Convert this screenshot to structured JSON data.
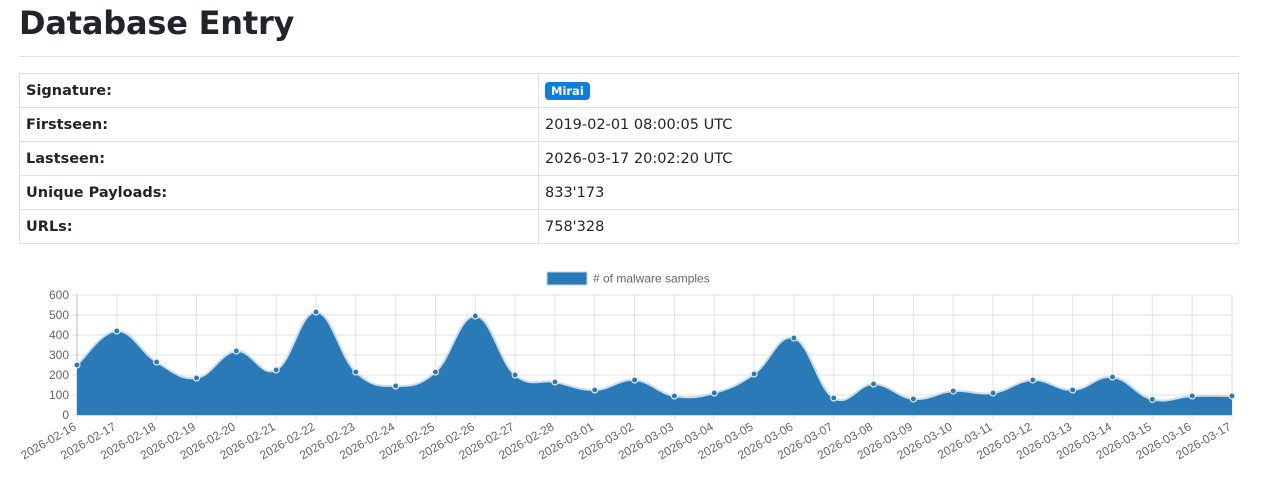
{
  "page": {
    "title": "Database Entry"
  },
  "info_rows": [
    {
      "label": "Signature:",
      "value": "Mirai",
      "badge": true
    },
    {
      "label": "Firstseen:",
      "value": "2019-02-01 08:00:05 UTC"
    },
    {
      "label": "Lastseen:",
      "value": "2026-03-17 20:02:20 UTC"
    },
    {
      "label": "Unique Payloads:",
      "value": "833'173"
    },
    {
      "label": "URLs:",
      "value": "758'328"
    }
  ],
  "colors": {
    "series_fill": "#2a7ab8",
    "badge": "#0d7ee0",
    "grid": "#e3e3e3"
  },
  "chart_data": {
    "type": "area",
    "legend": {
      "label": "# of malware samples",
      "position": "top"
    },
    "ylim": [
      0,
      600
    ],
    "yticks": [
      0,
      100,
      200,
      300,
      400,
      500,
      600
    ],
    "grid": true,
    "x": [
      "2026-02-16",
      "2026-02-17",
      "2026-02-18",
      "2026-02-19",
      "2026-02-20",
      "2026-02-21",
      "2026-02-22",
      "2026-02-23",
      "2026-02-24",
      "2026-02-25",
      "2026-02-26",
      "2026-02-27",
      "2026-02-28",
      "2026-03-01",
      "2026-03-02",
      "2026-03-03",
      "2026-03-04",
      "2026-03-05",
      "2026-03-06",
      "2026-03-07",
      "2026-03-08",
      "2026-03-09",
      "2026-03-10",
      "2026-03-11",
      "2026-03-12",
      "2026-03-13",
      "2026-03-14",
      "2026-03-15",
      "2026-03-16",
      "2026-03-17"
    ],
    "series": [
      {
        "name": "# of malware samples",
        "values": [
          250,
          420,
          265,
          185,
          320,
          225,
          515,
          215,
          145,
          215,
          495,
          200,
          165,
          125,
          175,
          95,
          110,
          205,
          385,
          85,
          155,
          80,
          120,
          110,
          175,
          125,
          190,
          78,
          95,
          95
        ]
      }
    ]
  }
}
